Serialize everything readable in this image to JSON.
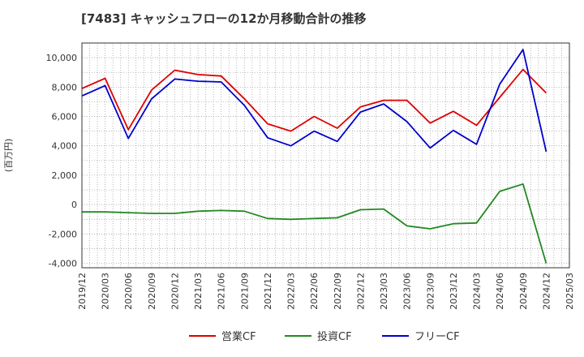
{
  "chart_data": {
    "type": "line",
    "title": "[7483]  キャッシュフローの12か月移動合計の推移",
    "ylabel": "(百万円)",
    "xlabel": "",
    "ylim": [
      -4300,
      11000
    ],
    "yticks": [
      -4000,
      -2000,
      0,
      2000,
      4000,
      6000,
      8000,
      10000
    ],
    "ytick_labels": [
      "-4,000",
      "-2,000",
      "0",
      "2,000",
      "4,000",
      "6,000",
      "8,000",
      "10,000"
    ],
    "xtick_labels": [
      "2019/12",
      "2020/03",
      "2020/06",
      "2020/09",
      "2020/12",
      "2021/03",
      "2021/06",
      "2021/09",
      "2021/12",
      "2022/03",
      "2022/06",
      "2022/09",
      "2022/12",
      "2023/03",
      "2023/06",
      "2023/09",
      "2023/12",
      "2024/03",
      "2024/06",
      "2024/09",
      "2024/12",
      "2025/03"
    ],
    "x": [
      "2019/12",
      "2020/03",
      "2020/06",
      "2020/09",
      "2020/12",
      "2021/03",
      "2021/06",
      "2021/09",
      "2021/12",
      "2022/03",
      "2022/06",
      "2022/09",
      "2022/12",
      "2023/03",
      "2023/06",
      "2023/09",
      "2023/12",
      "2024/03",
      "2024/06",
      "2024/09",
      "2024/12"
    ],
    "grid": true,
    "legend_position": "bottom",
    "series": [
      {
        "name": "営業CF",
        "color": "#dd0000",
        "values": [
          7900,
          8600,
          5100,
          7800,
          9150,
          8850,
          8750,
          7200,
          5500,
          5000,
          6000,
          5200,
          6650,
          7100,
          7100,
          5550,
          6350,
          5400,
          7300,
          9200,
          7600
        ]
      },
      {
        "name": "投資CF",
        "color": "#228822",
        "values": [
          -500,
          -500,
          -550,
          -600,
          -600,
          -450,
          -400,
          -450,
          -950,
          -1000,
          -950,
          -900,
          -350,
          -300,
          -1450,
          -1650,
          -1300,
          -1250,
          900,
          1400,
          -4000
        ]
      },
      {
        "name": "フリーCF",
        "color": "#0000cc",
        "values": [
          7400,
          8100,
          4500,
          7200,
          8550,
          8400,
          8350,
          6750,
          4550,
          4000,
          5000,
          4300,
          6300,
          6850,
          5650,
          3850,
          5050,
          4100,
          8200,
          10550,
          3600
        ]
      }
    ]
  }
}
